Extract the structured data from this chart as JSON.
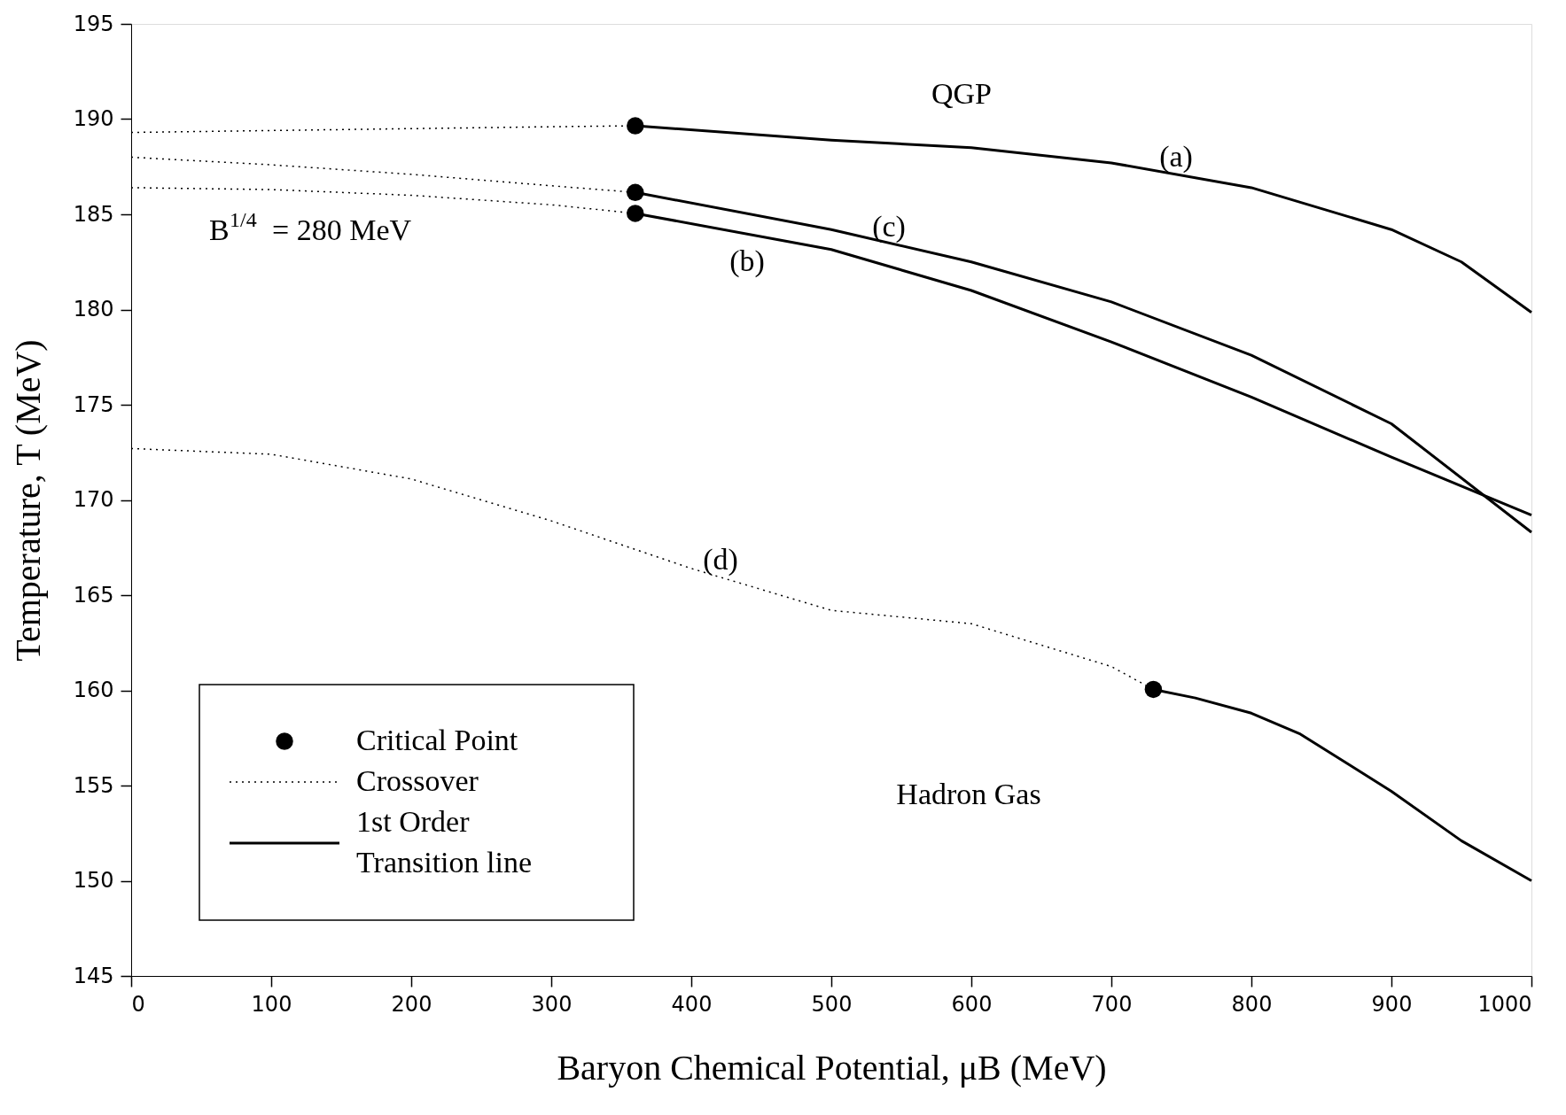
{
  "chart_data": {
    "type": "line",
    "xlabel": "Baryon Chemical Potential, μB (MeV)",
    "ylabel": "Temperature, T (MeV)",
    "xlim": [
      0,
      1000
    ],
    "xticks": [
      0,
      100,
      200,
      300,
      400,
      500,
      600,
      700,
      800,
      900,
      1000
    ],
    "ylim": [
      145,
      195
    ],
    "yticks": [
      145,
      150,
      155,
      160,
      165,
      170,
      175,
      180,
      185,
      190,
      195
    ],
    "grid": false,
    "legend": "bottom left",
    "series": [
      {
        "name": "Critical Point",
        "type": "scatter",
        "marker": "circle",
        "color": "#000000",
        "x": [
          360,
          360,
          360,
          730
        ],
        "values": [
          189.65,
          186.15,
          185.05,
          160.05
        ]
      },
      {
        "name": "Crossover",
        "line_style": "dotted",
        "color": "#000000",
        "x": [
          0,
          100,
          200,
          300,
          360
        ],
        "values": [
          189.3,
          189.4,
          189.5,
          189.6,
          189.65
        ]
      },
      {
        "line_style": "dotted",
        "color": "#000000",
        "x": [
          0,
          100,
          200,
          300,
          360
        ],
        "values": [
          188.0,
          187.6,
          187.1,
          186.5,
          186.15
        ]
      },
      {
        "line_style": "dotted",
        "color": "#000000",
        "x": [
          0,
          100,
          200,
          300,
          360
        ],
        "values": [
          186.4,
          186.3,
          186.0,
          185.5,
          185.05
        ]
      },
      {
        "line_style": "dotted",
        "color": "#000000",
        "x": [
          0,
          100,
          200,
          300,
          400,
          500,
          600,
          700,
          730
        ],
        "values": [
          172.7,
          172.4,
          171.1,
          168.9,
          166.4,
          164.2,
          163.5,
          161.25,
          160.05
        ]
      },
      {
        "name": "1st Order\nTransition line",
        "line_style": "solid",
        "color": "#000000",
        "x": [
          360,
          500,
          600,
          700,
          800,
          900,
          950,
          1000
        ],
        "values": [
          189.65,
          188.9,
          188.5,
          187.7,
          186.4,
          184.2,
          182.5,
          179.85
        ]
      },
      {
        "line_style": "solid",
        "color": "#000000",
        "x": [
          360,
          500,
          600,
          700,
          800,
          900,
          1000
        ],
        "values": [
          186.15,
          184.2,
          182.5,
          180.4,
          177.6,
          174.0,
          168.3
        ]
      },
      {
        "line_style": "solid",
        "color": "#000000",
        "x": [
          360,
          500,
          600,
          700,
          800,
          900,
          1000
        ],
        "values": [
          185.05,
          183.15,
          181.0,
          178.3,
          175.4,
          172.25,
          169.2
        ]
      },
      {
        "line_style": "solid",
        "color": "#000000",
        "x": [
          730,
          760,
          800,
          835,
          900,
          950,
          1000
        ],
        "values": [
          160.05,
          159.6,
          158.8,
          157.7,
          154.7,
          152.1,
          150.0
        ]
      }
    ],
    "annotations": [
      "QGP",
      "Hadron Gas",
      "B$^{1/4}$ = 280 MeV",
      "(a)",
      "(b)",
      "(c)",
      "(d)"
    ]
  }
}
